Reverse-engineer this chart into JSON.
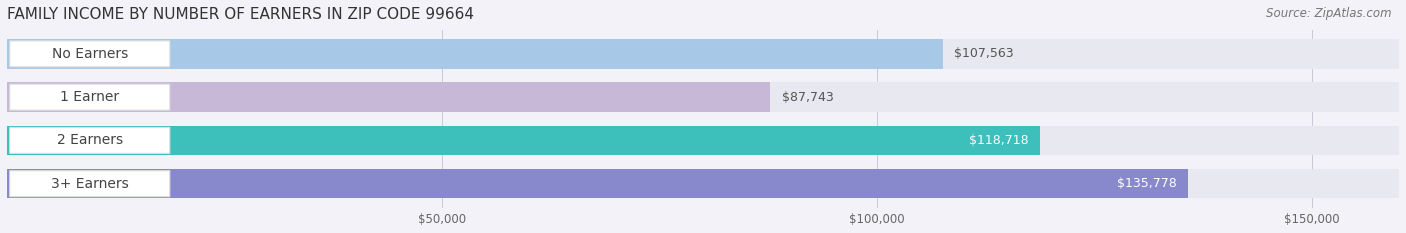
{
  "title": "FAMILY INCOME BY NUMBER OF EARNERS IN ZIP CODE 99664",
  "source": "Source: ZipAtlas.com",
  "categories": [
    "No Earners",
    "1 Earner",
    "2 Earners",
    "3+ Earners"
  ],
  "values": [
    107563,
    87743,
    118718,
    135778
  ],
  "bar_colors": [
    "#a8c8e8",
    "#c8b8d8",
    "#3dbfbc",
    "#8888cc"
  ],
  "label_colors": [
    "#555555",
    "#555555",
    "#ffffff",
    "#ffffff"
  ],
  "value_labels": [
    "$107,563",
    "$87,743",
    "$118,718",
    "$135,778"
  ],
  "xlim": [
    0,
    160000
  ],
  "xticks": [
    50000,
    100000,
    150000
  ],
  "xtick_labels": [
    "$50,000",
    "$100,000",
    "$150,000"
  ],
  "background_color": "#f2f2f8",
  "bar_background_color": "#e8e8f0",
  "title_fontsize": 11,
  "source_fontsize": 8.5,
  "label_fontsize": 10,
  "value_fontsize": 9
}
